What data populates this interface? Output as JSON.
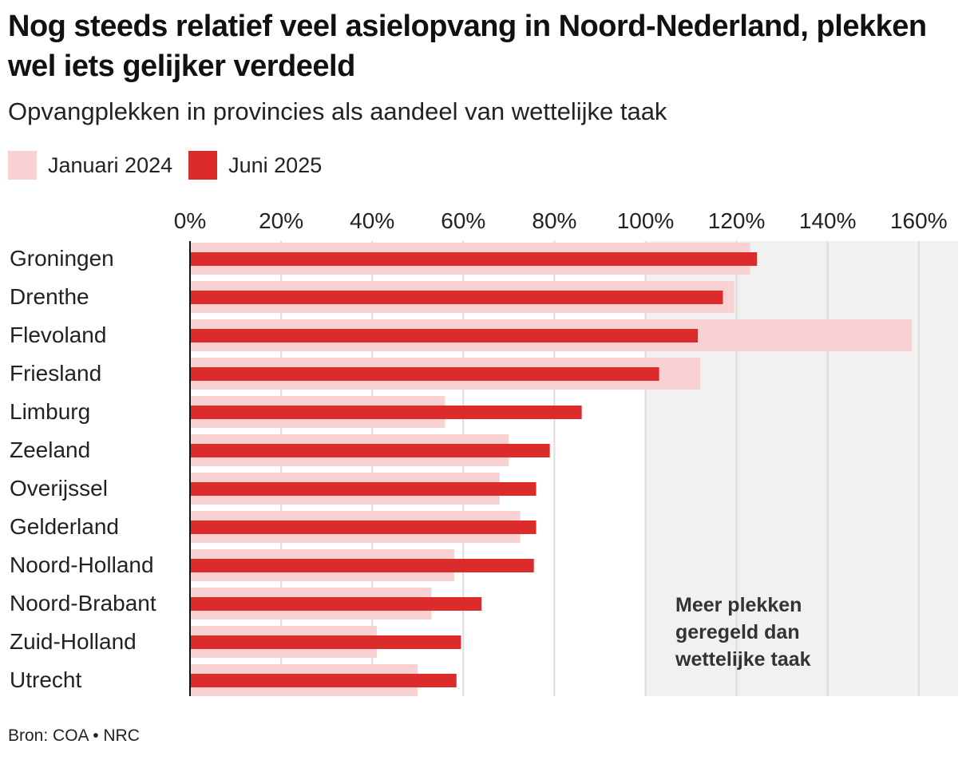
{
  "header": {
    "title": "Nog steeds relatief veel asielopvang in Noord-Nederland, plekken wel iets gelijker verdeeld",
    "subtitle": "Opvangplekken in provincies als aandeel van wettelijke taak"
  },
  "footer": {
    "source": "Bron: COA • NRC"
  },
  "chart_data": {
    "type": "bar",
    "orientation": "horizontal",
    "categories": [
      "Groningen",
      "Drenthe",
      "Flevoland",
      "Friesland",
      "Limburg",
      "Zeeland",
      "Overijssel",
      "Gelderland",
      "Noord-Holland",
      "Noord-Brabant",
      "Zuid-Holland",
      "Utrecht"
    ],
    "series": [
      {
        "name": "Januari 2024",
        "color": "#f8d2d2",
        "values": [
          123,
          119.5,
          158.5,
          112,
          56,
          70,
          68,
          72.5,
          58,
          53,
          41,
          50
        ]
      },
      {
        "name": "Juni 2025",
        "color": "#dc2b2b",
        "values": [
          124.5,
          117,
          111.5,
          103,
          86,
          79,
          76,
          76,
          75.5,
          64,
          59.5,
          58.5
        ]
      }
    ],
    "xlim": [
      0,
      170
    ],
    "x_ticks": [
      0,
      20,
      40,
      60,
      80,
      100,
      120,
      140,
      160
    ],
    "x_tick_labels": [
      "0%",
      "20%",
      "40%",
      "60%",
      "80%",
      "100%",
      "120%",
      "140%",
      "160%"
    ],
    "xlabel": "",
    "ylabel": "",
    "legend_position": "top-left",
    "grid": true,
    "shaded_region": {
      "from": 100,
      "to": 170,
      "color": "#f1f1f1"
    },
    "annotation": {
      "text": [
        "Meer plekken",
        "geregeld dan",
        "wettelijke taak"
      ]
    }
  }
}
